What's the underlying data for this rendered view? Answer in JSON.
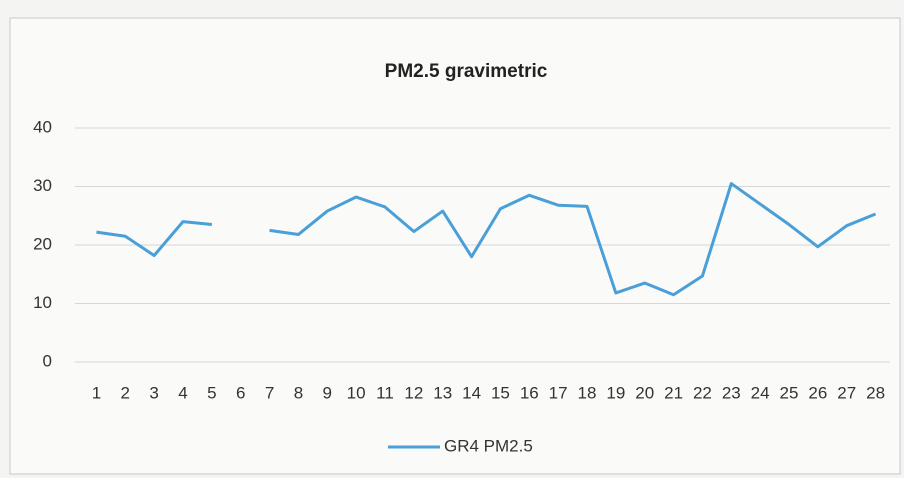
{
  "chart_data": {
    "type": "line",
    "title": "PM2.5 gravimetric",
    "categories": [
      "1",
      "2",
      "3",
      "4",
      "5",
      "6",
      "7",
      "8",
      "9",
      "10",
      "11",
      "12",
      "13",
      "14",
      "15",
      "16",
      "17",
      "18",
      "19",
      "20",
      "21",
      "22",
      "23",
      "24",
      "25",
      "26",
      "27",
      "28"
    ],
    "series": [
      {
        "name": "GR4 PM2.5",
        "color": "#4a9fd8",
        "values": [
          22.2,
          21.5,
          18.2,
          24,
          23.5,
          null,
          22.5,
          21.8,
          25.8,
          28.2,
          26.5,
          22.3,
          25.8,
          18,
          26.2,
          28.5,
          26.8,
          26.6,
          11.8,
          13.5,
          11.5,
          14.7,
          30.5,
          27,
          23.5,
          19.7,
          23.3,
          25.3
        ]
      }
    ],
    "ylim": [
      0,
      40
    ],
    "yticks": [
      0,
      10,
      20,
      30,
      40
    ],
    "grid": true,
    "legend": "bottom"
  }
}
